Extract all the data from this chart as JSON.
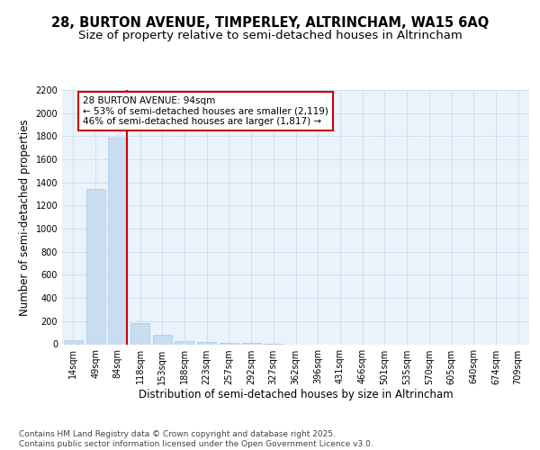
{
  "title_line1": "28, BURTON AVENUE, TIMPERLEY, ALTRINCHAM, WA15 6AQ",
  "title_line2": "Size of property relative to semi-detached houses in Altrincham",
  "xlabel": "Distribution of semi-detached houses by size in Altrincham",
  "ylabel": "Number of semi-detached properties",
  "categories": [
    "14sqm",
    "49sqm",
    "84sqm",
    "118sqm",
    "153sqm",
    "188sqm",
    "223sqm",
    "257sqm",
    "292sqm",
    "327sqm",
    "362sqm",
    "396sqm",
    "431sqm",
    "466sqm",
    "501sqm",
    "535sqm",
    "570sqm",
    "605sqm",
    "640sqm",
    "674sqm",
    "709sqm"
  ],
  "values": [
    35,
    1340,
    1790,
    180,
    80,
    30,
    20,
    15,
    10,
    5,
    0,
    0,
    0,
    0,
    0,
    0,
    0,
    0,
    0,
    0,
    0
  ],
  "bar_color": "#c9ddf0",
  "bar_edge_color": "#a8c8e8",
  "vline_x_index": 2,
  "vline_color": "#cc0000",
  "annotation_title": "28 BURTON AVENUE: 94sqm",
  "annotation_line1": "← 53% of semi-detached houses are smaller (2,119)",
  "annotation_line2": "46% of semi-detached houses are larger (1,817) →",
  "ylim": [
    0,
    2200
  ],
  "yticks": [
    0,
    200,
    400,
    600,
    800,
    1000,
    1200,
    1400,
    1600,
    1800,
    2000,
    2200
  ],
  "footer_line1": "Contains HM Land Registry data © Crown copyright and database right 2025.",
  "footer_line2": "Contains public sector information licensed under the Open Government Licence v3.0.",
  "background_color": "#ffffff",
  "plot_bg_color": "#eaf2fb",
  "grid_color": "#c8d8e8",
  "title_fontsize": 10.5,
  "subtitle_fontsize": 9.5,
  "axis_label_fontsize": 8.5,
  "tick_fontsize": 7,
  "annotation_fontsize": 7.5,
  "footer_fontsize": 6.5
}
